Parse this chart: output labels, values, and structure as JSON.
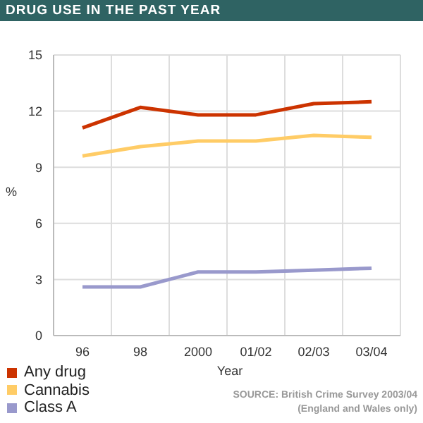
{
  "chart_data": {
    "type": "line",
    "title": "DRUG USE IN THE PAST YEAR",
    "xlabel": "Year",
    "ylabel": "%",
    "categories": [
      "96",
      "98",
      "2000",
      "01/02",
      "02/03",
      "03/04"
    ],
    "series": [
      {
        "name": "Any drug",
        "color": "#cc3300",
        "values": [
          11.1,
          12.2,
          11.8,
          11.8,
          12.4,
          12.5
        ]
      },
      {
        "name": "Cannabis",
        "color": "#ffcc66",
        "values": [
          9.6,
          10.1,
          10.4,
          10.4,
          10.7,
          10.6
        ]
      },
      {
        "name": "Class A",
        "color": "#9999cc",
        "values": [
          2.6,
          2.6,
          3.4,
          3.4,
          3.5,
          3.6
        ]
      }
    ],
    "ylim": [
      0,
      15
    ],
    "yticks": [
      0,
      3,
      6,
      9,
      12,
      15
    ],
    "grid": true,
    "legend": "bottom left",
    "marker": "none",
    "line_style": "solid",
    "annotations": [
      "SOURCE: British Crime Survey 2003/04",
      "(England and Wales only)"
    ]
  }
}
